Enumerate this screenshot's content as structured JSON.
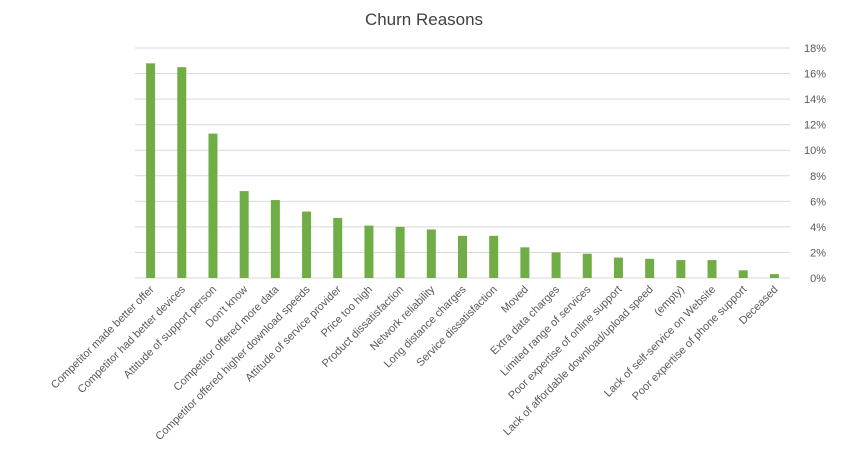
{
  "chart_data": {
    "type": "bar",
    "title": "Churn Reasons",
    "xlabel": "",
    "ylabel": "",
    "ylim": [
      0,
      0.18
    ],
    "ytick_step": 0.02,
    "ytick_format": "percent",
    "y_axis_side": "right",
    "grid": true,
    "legend": "none",
    "bar_color": "#70ad47",
    "categories": [
      "Competitor made better offer",
      "Competitor had better devices",
      "Attitude of support person",
      "Don't know",
      "Competitor offered more data",
      "Competitor offered higher download speeds",
      "Attitude of service provider",
      "Price too high",
      "Product dissatisfaction",
      "Network reliability",
      "Long distance charges",
      "Service dissatisfaction",
      "Moved",
      "Extra data charges",
      "Limited range of services",
      "Poor expertise of online support",
      "Lack of affordable download/upload speed",
      "(empty)",
      "Lack of self-service on Website",
      "Poor expertise of phone support",
      "Deceased"
    ],
    "values": [
      0.168,
      0.165,
      0.113,
      0.068,
      0.061,
      0.052,
      0.047,
      0.041,
      0.04,
      0.038,
      0.033,
      0.033,
      0.024,
      0.02,
      0.019,
      0.016,
      0.015,
      0.014,
      0.014,
      0.006,
      0.003
    ]
  }
}
